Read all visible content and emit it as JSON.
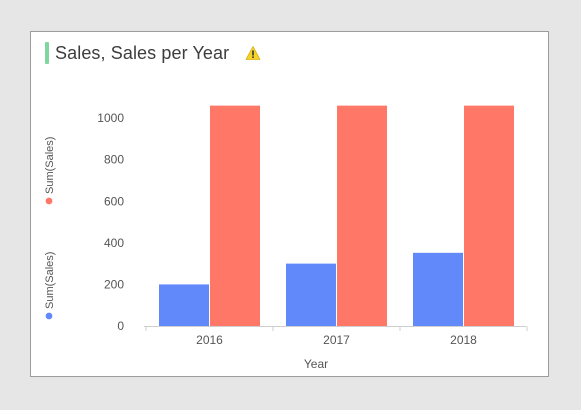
{
  "header": {
    "title": "Sales, Sales per Year",
    "accent_color": "#7ed79e",
    "warning_icon": "warning-icon"
  },
  "chart_data": {
    "type": "bar",
    "title": "Sales, Sales per Year",
    "xlabel": "Year",
    "categories": [
      "2016",
      "2017",
      "2018"
    ],
    "series": [
      {
        "name": "Sum(Sales)",
        "values": [
          200,
          300,
          352
        ],
        "color": "#6189fa"
      },
      {
        "name": "Sum(Sales)",
        "values": [
          1060,
          1060,
          1060
        ],
        "color": "#ff7766"
      }
    ],
    "yticks": [
      0,
      200,
      400,
      600,
      800,
      1000
    ],
    "ylim": [
      0,
      1100
    ],
    "grid": false,
    "legend_placement": "left-vertical"
  }
}
